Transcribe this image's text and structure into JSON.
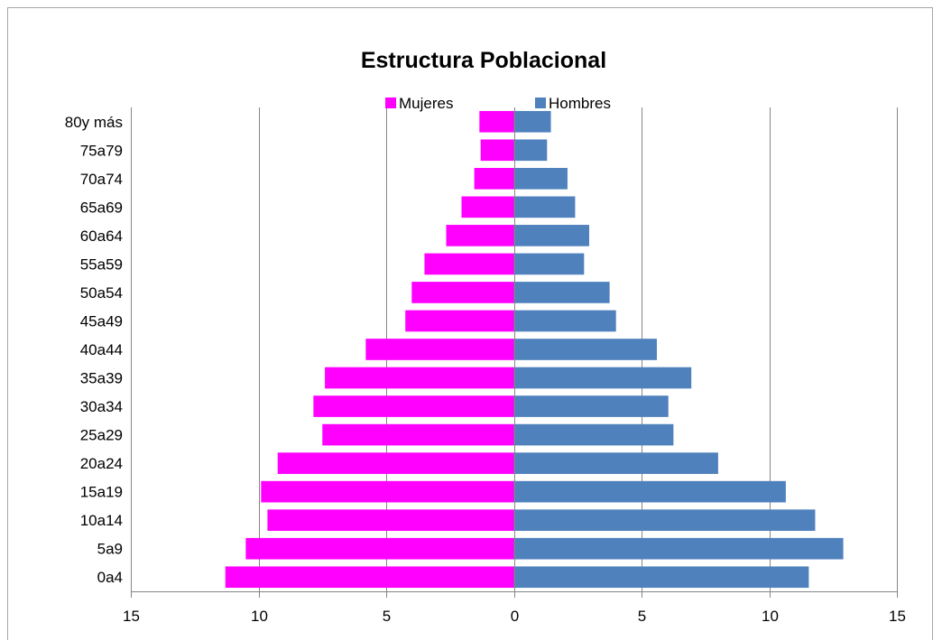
{
  "chart_data": {
    "type": "bar",
    "orientation": "horizontal",
    "layout": "population-pyramid",
    "title": "Estructura Poblacional",
    "xlabel": "",
    "ylabel": "",
    "xlim": [
      -15,
      15
    ],
    "x_ticks": [
      -15,
      -10,
      -5,
      0,
      5,
      10,
      15
    ],
    "x_tick_labels": [
      "15",
      "10",
      "5",
      "0",
      "5",
      "10",
      "15"
    ],
    "grid": "vertical",
    "legend_position": "top-center",
    "categories": [
      "80y más",
      "75a79",
      "70a74",
      "65a69",
      "60a64",
      "55a59",
      "50a54",
      "45a49",
      "40a44",
      "35a39",
      "30a34",
      "25a29",
      "20a24",
      "15a19",
      "10a14",
      "5a9",
      "0a4"
    ],
    "series": [
      {
        "name": "Mujeres",
        "color": "#ff00ff",
        "side": "left",
        "values": [
          1.35,
          1.3,
          1.55,
          2.05,
          2.65,
          3.5,
          4.0,
          4.25,
          5.8,
          7.4,
          7.85,
          7.5,
          9.25,
          9.9,
          9.65,
          10.5,
          11.3
        ]
      },
      {
        "name": "Hombres",
        "color": "#4f81bd",
        "side": "right",
        "values": [
          1.45,
          1.3,
          2.1,
          2.4,
          2.95,
          2.75,
          3.75,
          4.0,
          5.6,
          6.95,
          6.05,
          6.25,
          8.0,
          10.65,
          11.8,
          12.9,
          11.55
        ]
      }
    ]
  }
}
